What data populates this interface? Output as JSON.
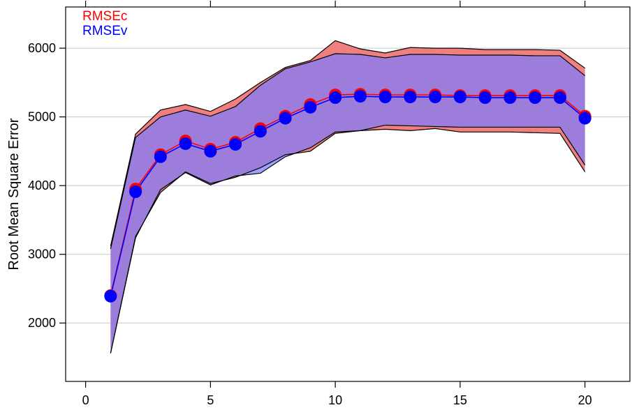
{
  "chart_data": {
    "type": "area",
    "title": "",
    "xlabel": "",
    "ylabel": "Root Mean Square Error",
    "xlim": [
      -0.8,
      21.8
    ],
    "ylim": [
      1150,
      6600
    ],
    "x_ticks": [
      0,
      5,
      10,
      15,
      20
    ],
    "y_ticks": [
      2000,
      3000,
      4000,
      5000,
      6000
    ],
    "x_tick_labels": [
      "0",
      "5",
      "10",
      "15",
      "20"
    ],
    "y_tick_labels": [
      "2000",
      "3000",
      "4000",
      "5000",
      "6000"
    ],
    "grid": "horizontal",
    "legend_position": "top-left",
    "x": [
      1,
      2,
      3,
      4,
      5,
      6,
      7,
      8,
      9,
      10,
      11,
      12,
      13,
      14,
      15,
      16,
      17,
      18,
      19,
      20
    ],
    "series": [
      {
        "name": "RMSEc",
        "color": "#ff0000",
        "band_color": "#f08080",
        "values": [
          2400,
          3950,
          4450,
          4650,
          4530,
          4630,
          4830,
          5010,
          5180,
          5320,
          5330,
          5320,
          5320,
          5320,
          5310,
          5310,
          5310,
          5310,
          5310,
          5010
        ],
        "upper": [
          3120,
          4750,
          5100,
          5180,
          5080,
          5260,
          5500,
          5720,
          5820,
          6110,
          5990,
          5930,
          6010,
          6000,
          6000,
          5980,
          5980,
          5980,
          5970,
          5710
        ],
        "lower": [
          1560,
          3260,
          3900,
          4200,
          4030,
          4120,
          4260,
          4450,
          4500,
          4760,
          4800,
          4820,
          4800,
          4830,
          4780,
          4780,
          4780,
          4770,
          4760,
          4200
        ]
      },
      {
        "name": "RMSEv",
        "color": "#0000ff",
        "band_color": "#7b7bff",
        "values": [
          2390,
          3910,
          4420,
          4610,
          4500,
          4600,
          4790,
          4980,
          5140,
          5280,
          5300,
          5290,
          5290,
          5290,
          5290,
          5280,
          5280,
          5280,
          5280,
          4980
        ],
        "upper": [
          3080,
          4700,
          5000,
          5100,
          5010,
          5150,
          5460,
          5700,
          5800,
          5920,
          5910,
          5860,
          5910,
          5910,
          5900,
          5900,
          5900,
          5890,
          5890,
          5600
        ],
        "lower": [
          1560,
          3240,
          3940,
          4190,
          4010,
          4140,
          4180,
          4420,
          4550,
          4780,
          4800,
          4880,
          4870,
          4860,
          4850,
          4850,
          4850,
          4850,
          4850,
          4300
        ]
      }
    ]
  }
}
